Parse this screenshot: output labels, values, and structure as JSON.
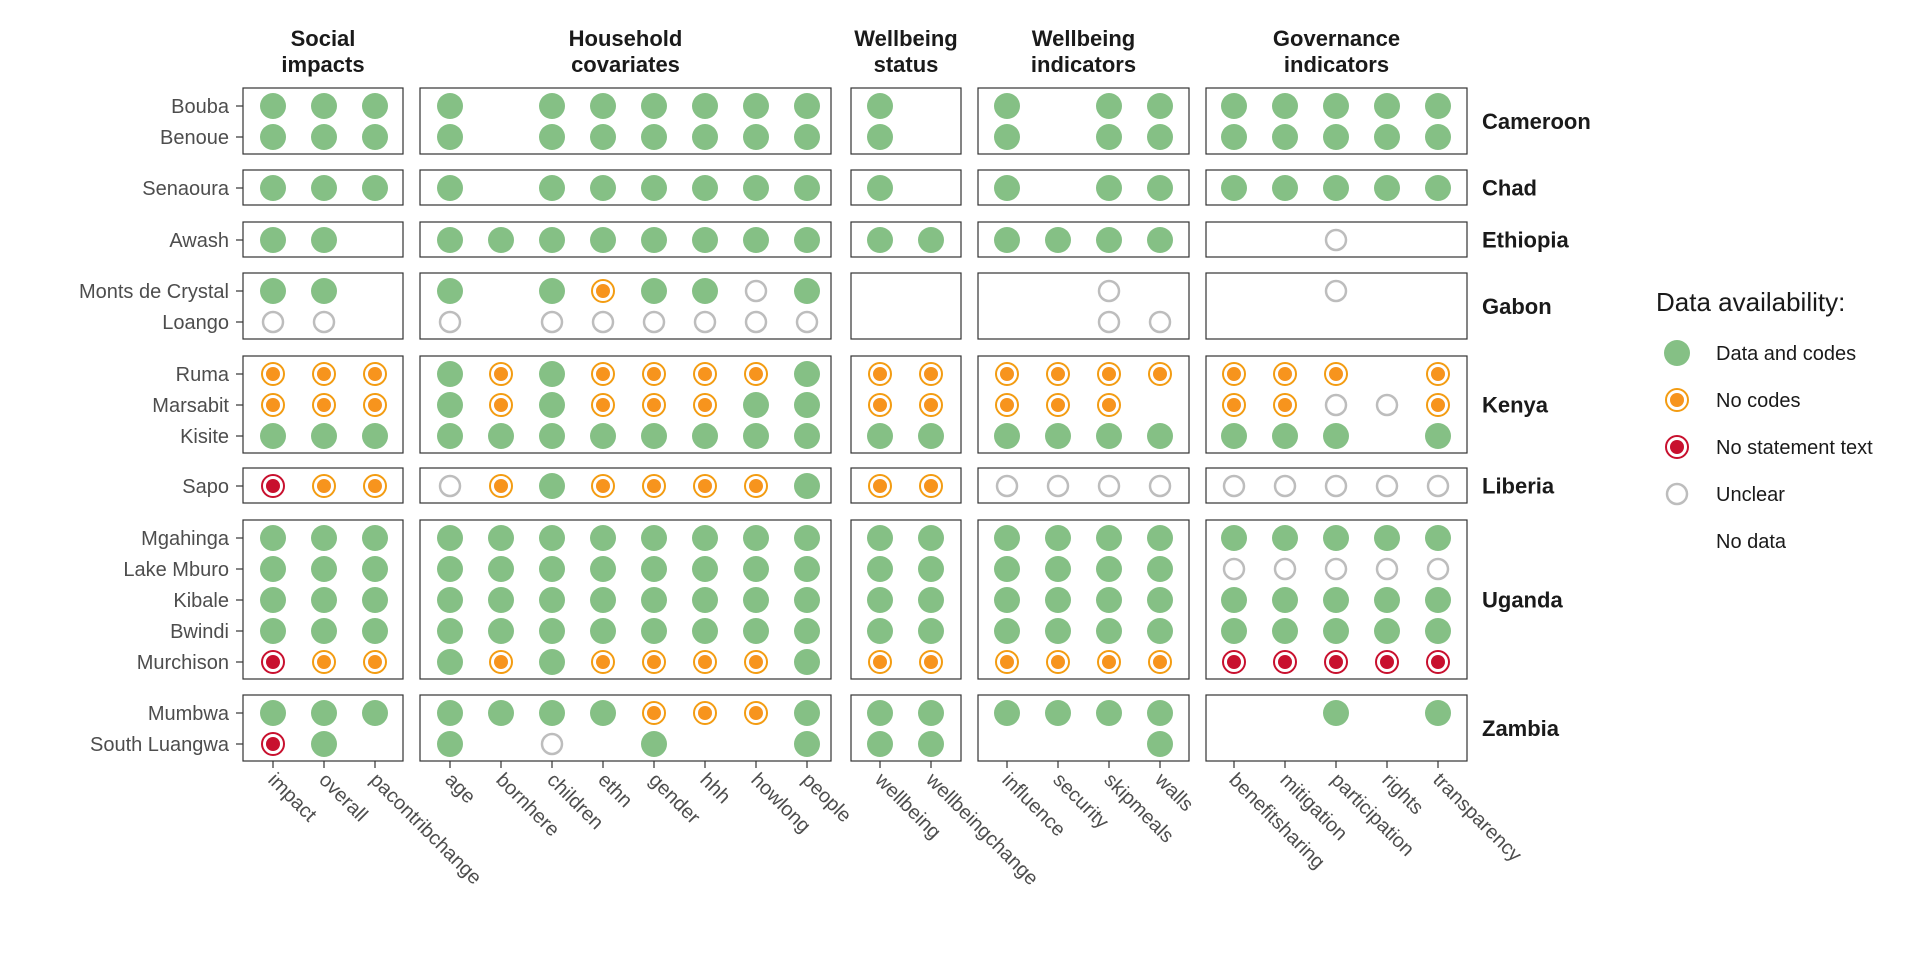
{
  "chart_data": {
    "type": "dot-matrix",
    "legend": {
      "title": "Data availability:",
      "placement": "right",
      "entries": [
        {
          "key": "data",
          "label": "Data and codes"
        },
        {
          "key": "nocodes",
          "label": "No codes"
        },
        {
          "key": "nostatement",
          "label": "No statement text"
        },
        {
          "key": "unclear",
          "label": "Unclear"
        },
        {
          "key": "none",
          "label": "No data"
        }
      ]
    },
    "colors": {
      "data": "#85c085",
      "nocodes_ring": "#f39c12",
      "nocodes_dot": "#f7941d",
      "nostatement_ring": "#c8102e",
      "nostatement_dot": "#c8102e",
      "unclear_ring": "#bdbdbd"
    },
    "column_groups": [
      {
        "title_lines": [
          "Social",
          "impacts"
        ],
        "columns": [
          "impact",
          "overall",
          "pacontribchange"
        ]
      },
      {
        "title_lines": [
          "Household",
          "covariates"
        ],
        "columns": [
          "age",
          "bornhere",
          "children",
          "ethn",
          "gender",
          "hhh",
          "howlong",
          "people"
        ]
      },
      {
        "title_lines": [
          "Wellbeing",
          "status"
        ],
        "columns": [
          "wellbeing",
          "wellbeingchange"
        ]
      },
      {
        "title_lines": [
          "Wellbeing",
          "indicators"
        ],
        "columns": [
          "influence",
          "security",
          "skipmeals",
          "walls"
        ]
      },
      {
        "title_lines": [
          "Governance",
          "indicators"
        ],
        "columns": [
          "benefitsharing",
          "mitigation",
          "participation",
          "rights",
          "transparency"
        ]
      }
    ],
    "row_groups": [
      {
        "country": "Cameroon",
        "sites": [
          {
            "name": "Bouba",
            "values": [
              "D D D",
              "D . D D D D D D",
              "D .",
              "D . D D",
              "D D D D D"
            ]
          },
          {
            "name": "Benoue",
            "values": [
              "D D D",
              "D . D D D D D D",
              "D .",
              "D . D D",
              "D D D D D"
            ]
          }
        ]
      },
      {
        "country": "Chad",
        "sites": [
          {
            "name": "Senaoura",
            "values": [
              "D D D",
              "D . D D D D D D",
              "D .",
              "D . D D",
              "D D D D D"
            ]
          }
        ]
      },
      {
        "country": "Ethiopia",
        "sites": [
          {
            "name": "Awash",
            "values": [
              "D D .",
              "D D D D D D D D",
              "D D",
              "D D D D",
              ". . U . ."
            ]
          }
        ]
      },
      {
        "country": "Gabon",
        "sites": [
          {
            "name": "Monts de Crystal",
            "values": [
              "D D .",
              "D . D N D D U D",
              ". .",
              ". . U .",
              ". . U . ."
            ]
          },
          {
            "name": "Loango",
            "values": [
              "U U .",
              "U . U U U U U U",
              ". .",
              ". . U U",
              ". . . . ."
            ]
          }
        ]
      },
      {
        "country": "Kenya",
        "sites": [
          {
            "name": "Ruma",
            "values": [
              "N N N",
              "D N D N N N N D",
              "N N",
              "N N N N",
              "N N N . N"
            ]
          },
          {
            "name": "Marsabit",
            "values": [
              "N N N",
              "D N D N N N D D",
              "N N",
              "N N N .",
              "N N U U N"
            ]
          },
          {
            "name": "Kisite",
            "values": [
              "D D D",
              "D D D D D D D D",
              "D D",
              "D D D D",
              "D D D . D"
            ]
          }
        ]
      },
      {
        "country": "Liberia",
        "sites": [
          {
            "name": "Sapo",
            "values": [
              "S N N",
              "U N D N N N N D",
              "N N",
              "U U U U",
              "U U U U U"
            ]
          }
        ]
      },
      {
        "country": "Uganda",
        "sites": [
          {
            "name": "Mgahinga",
            "values": [
              "D D D",
              "D D D D D D D D",
              "D D",
              "D D D D",
              "D D D D D"
            ]
          },
          {
            "name": "Lake Mburo",
            "values": [
              "D D D",
              "D D D D D D D D",
              "D D",
              "D D D D",
              "U U U U U"
            ]
          },
          {
            "name": "Kibale",
            "values": [
              "D D D",
              "D D D D D D D D",
              "D D",
              "D D D D",
              "D D D D D"
            ]
          },
          {
            "name": "Bwindi",
            "values": [
              "D D D",
              "D D D D D D D D",
              "D D",
              "D D D D",
              "D D D D D"
            ]
          },
          {
            "name": "Murchison",
            "values": [
              "S N N",
              "D N D N N N N D",
              "N N",
              "N N N N",
              "S S S S S"
            ]
          }
        ]
      },
      {
        "country": "Zambia",
        "sites": [
          {
            "name": "Mumbwa",
            "values": [
              "D D D",
              "D D D D N N N D",
              "D D",
              "D D D D",
              ". . D . D"
            ]
          },
          {
            "name": "South Luangwa",
            "values": [
              "S D .",
              "D . U . D . . D",
              "D D",
              ". . . D",
              ". . . . ."
            ]
          }
        ]
      }
    ]
  }
}
